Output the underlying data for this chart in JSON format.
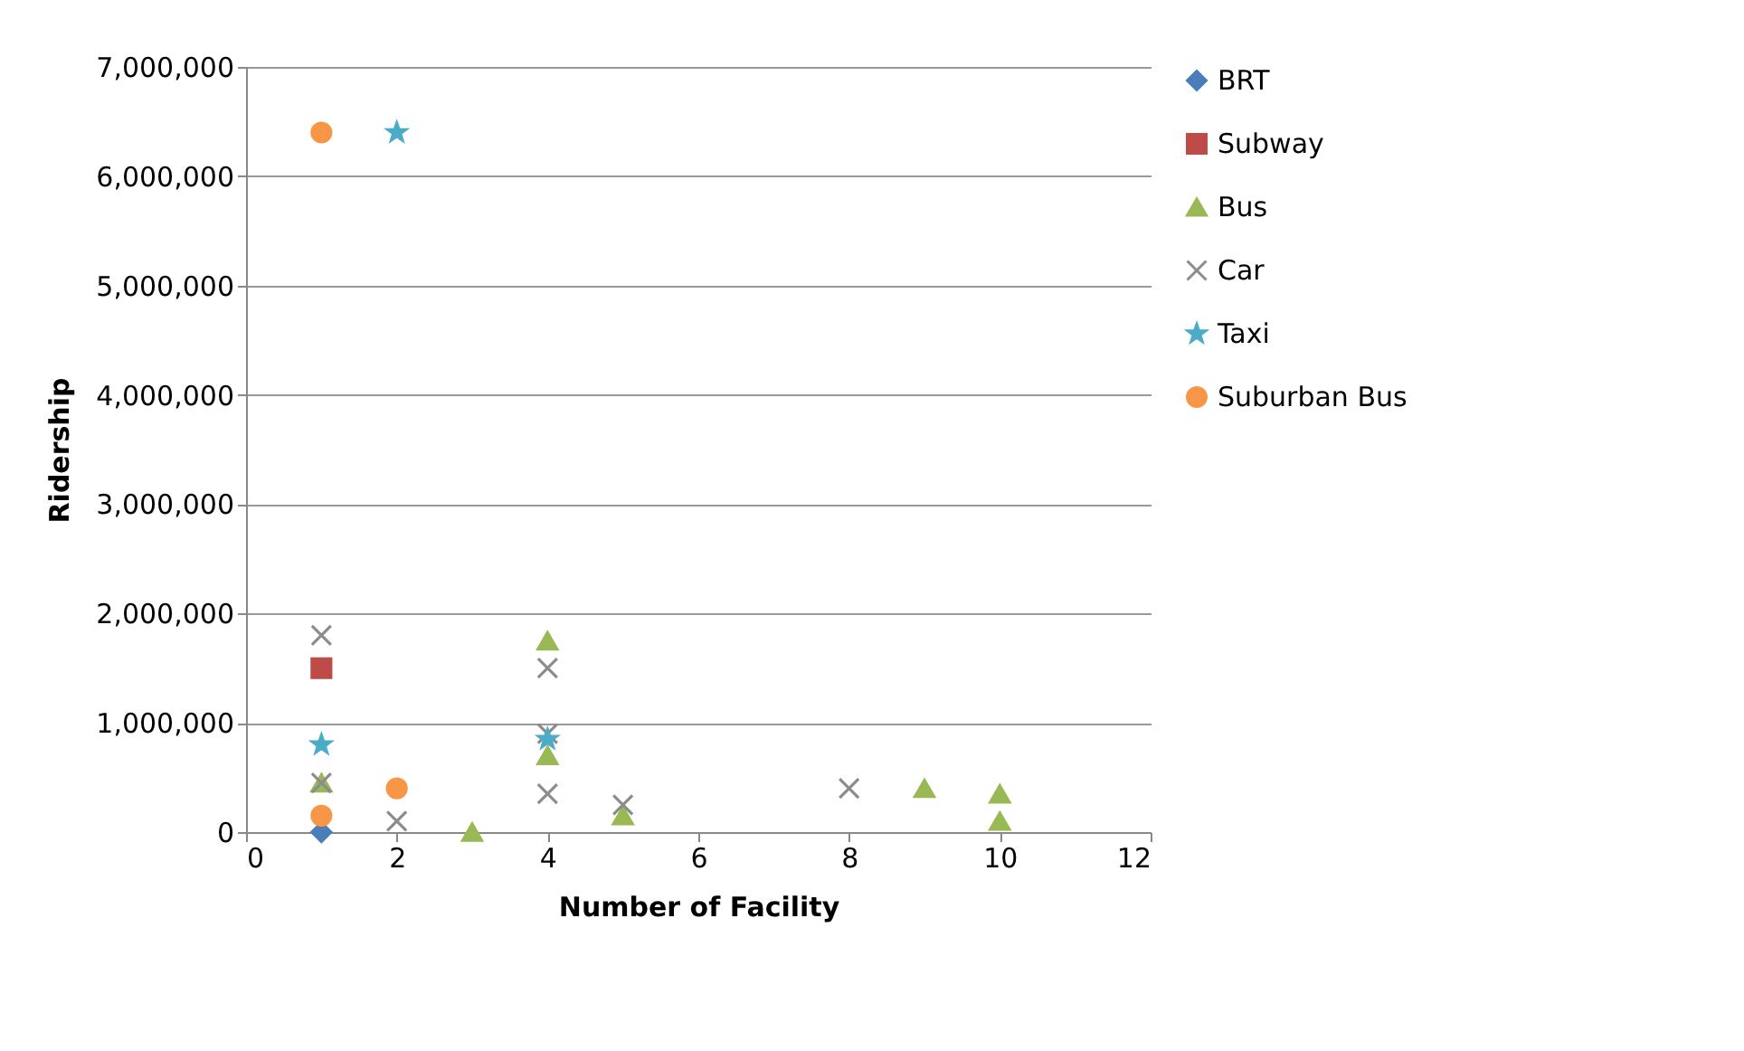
{
  "chart_data": {
    "type": "scatter",
    "xlabel": "Number of Facility",
    "ylabel": "Ridership",
    "xlim": [
      0,
      12
    ],
    "xticks": [
      0,
      2,
      4,
      6,
      8,
      10,
      12
    ],
    "ylim": [
      0,
      7000000
    ],
    "yticks": [
      0,
      {
        "value": 1000000,
        "label": "1,000,000"
      },
      {
        "value": 2000000,
        "label": "2,000,000"
      },
      {
        "value": 3000000,
        "label": "3,000,000"
      },
      {
        "value": 4000000,
        "label": "4,000,000"
      },
      {
        "value": 5000000,
        "label": "5,000,000"
      },
      {
        "value": 6000000,
        "label": "6,000,000"
      },
      {
        "value": 7000000,
        "label": "7,000,000"
      }
    ],
    "grid": "y",
    "legend": "right",
    "series": [
      {
        "name": "BRT",
        "color": "#4a7ebb",
        "marker": "diamond",
        "x": [
          1
        ],
        "values": [
          0
        ]
      },
      {
        "name": "Subway",
        "color": "#be4b48",
        "marker": "square",
        "x": [
          1
        ],
        "values": [
          1500000
        ]
      },
      {
        "name": "Bus",
        "color": "#98b954",
        "marker": "triangle",
        "x": [
          1,
          3,
          4,
          4,
          5,
          9,
          10,
          10
        ],
        "values": [
          450000,
          0,
          1750000,
          700000,
          150000,
          400000,
          350000,
          100000
        ]
      },
      {
        "name": "Car",
        "color": "#8c8c8c",
        "marker": "cross",
        "x": [
          1,
          1,
          2,
          4,
          4,
          4,
          5,
          8
        ],
        "values": [
          1800000,
          450000,
          100000,
          1500000,
          900000,
          350000,
          250000,
          400000
        ]
      },
      {
        "name": "Taxi",
        "color": "#4bacc6",
        "marker": "star",
        "x": [
          1,
          2,
          4
        ],
        "values": [
          800000,
          6400000,
          850000
        ]
      },
      {
        "name": "Suburban Bus",
        "color": "#f79646",
        "marker": "circle",
        "x": [
          1,
          1,
          2
        ],
        "values": [
          6400000,
          150000,
          400000
        ]
      }
    ]
  }
}
